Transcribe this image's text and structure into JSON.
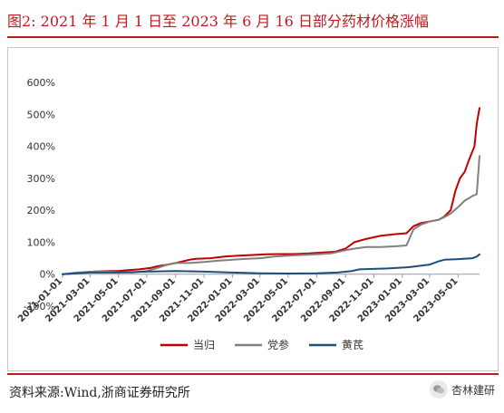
{
  "header": {
    "title": "图2:   2021 年 1 月 1 日至 2023 年 6 月 16 日部分药材价格涨幅"
  },
  "footer": {
    "source": "资料来源:Wind,浙商证券研究所",
    "watermark": "杏林建研"
  },
  "colors": {
    "accent": "#c0191f",
    "danggui": "#c00000",
    "dangshen": "#808080",
    "huangqi": "#1f4e79"
  },
  "chart_data": {
    "type": "line",
    "title": "图2:   2021 年 1 月 1 日至 2023 年 6 月 16 日部分药材价格涨幅",
    "xlabel": "",
    "ylabel": "",
    "ylim": [
      -100,
      600
    ],
    "y_ticks": [
      "-100%",
      "0%",
      "100%",
      "200%",
      "300%",
      "400%",
      "500%",
      "600%"
    ],
    "y_tick_values": [
      -100,
      0,
      100,
      200,
      300,
      400,
      500,
      600
    ],
    "x_range": [
      "2021-01-01",
      "2023-06-16"
    ],
    "x_ticks": [
      "2021-01-01",
      "2021-03-01",
      "2021-05-01",
      "2021-07-01",
      "2021-09-01",
      "2021-11-01",
      "2022-01-01",
      "2022-03-01",
      "2022-05-01",
      "2022-07-01",
      "2022-09-01",
      "2022-11-01",
      "2023-01-01",
      "2023-03-01",
      "2023-05-01"
    ],
    "grid": false,
    "legend_position": "bottom",
    "series": [
      {
        "name": "当归",
        "color": "#c00000",
        "points": [
          [
            "2021-01-01",
            0
          ],
          [
            "2021-01-20",
            2
          ],
          [
            "2021-02-15",
            5
          ],
          [
            "2021-03-10",
            8
          ],
          [
            "2021-04-10",
            10
          ],
          [
            "2021-05-01",
            10
          ],
          [
            "2021-05-15",
            12
          ],
          [
            "2021-06-15",
            15
          ],
          [
            "2021-07-10",
            20
          ],
          [
            "2021-07-25",
            25
          ],
          [
            "2021-08-15",
            30
          ],
          [
            "2021-09-01",
            35
          ],
          [
            "2021-10-01",
            45
          ],
          [
            "2021-10-15",
            48
          ],
          [
            "2021-11-15",
            50
          ],
          [
            "2021-12-15",
            55
          ],
          [
            "2022-01-15",
            58
          ],
          [
            "2022-02-15",
            60
          ],
          [
            "2022-03-15",
            62
          ],
          [
            "2022-04-15",
            63
          ],
          [
            "2022-05-15",
            63
          ],
          [
            "2022-06-15",
            65
          ],
          [
            "2022-07-15",
            68
          ],
          [
            "2022-08-10",
            70
          ],
          [
            "2022-09-01",
            80
          ],
          [
            "2022-09-20",
            100
          ],
          [
            "2022-10-15",
            110
          ],
          [
            "2022-11-15",
            120
          ],
          [
            "2022-12-15",
            125
          ],
          [
            "2023-01-10",
            128
          ],
          [
            "2023-01-25",
            150
          ],
          [
            "2023-02-10",
            160
          ],
          [
            "2023-03-01",
            165
          ],
          [
            "2023-03-20",
            170
          ],
          [
            "2023-04-01",
            180
          ],
          [
            "2023-04-15",
            200
          ],
          [
            "2023-04-25",
            260
          ],
          [
            "2023-05-05",
            300
          ],
          [
            "2023-05-15",
            320
          ],
          [
            "2023-05-25",
            360
          ],
          [
            "2023-06-05",
            400
          ],
          [
            "2023-06-10",
            470
          ],
          [
            "2023-06-16",
            520
          ]
        ]
      },
      {
        "name": "党参",
        "color": "#808080",
        "points": [
          [
            "2021-01-01",
            0
          ],
          [
            "2021-02-01",
            5
          ],
          [
            "2021-03-10",
            8
          ],
          [
            "2021-04-10",
            8
          ],
          [
            "2021-05-01",
            6
          ],
          [
            "2021-06-01",
            5
          ],
          [
            "2021-07-01",
            10
          ],
          [
            "2021-07-25",
            20
          ],
          [
            "2021-08-15",
            30
          ],
          [
            "2021-09-01",
            35
          ],
          [
            "2021-10-01",
            35
          ],
          [
            "2021-11-01",
            38
          ],
          [
            "2021-12-01",
            42
          ],
          [
            "2022-01-01",
            45
          ],
          [
            "2022-02-01",
            48
          ],
          [
            "2022-03-01",
            50
          ],
          [
            "2022-04-01",
            55
          ],
          [
            "2022-05-01",
            58
          ],
          [
            "2022-06-01",
            60
          ],
          [
            "2022-07-01",
            62
          ],
          [
            "2022-08-01",
            65
          ],
          [
            "2022-09-01",
            75
          ],
          [
            "2022-09-20",
            80
          ],
          [
            "2022-10-15",
            85
          ],
          [
            "2022-11-15",
            85
          ],
          [
            "2022-12-15",
            87
          ],
          [
            "2023-01-10",
            90
          ],
          [
            "2023-01-25",
            140
          ],
          [
            "2023-02-10",
            155
          ],
          [
            "2023-03-01",
            165
          ],
          [
            "2023-03-20",
            170
          ],
          [
            "2023-04-01",
            178
          ],
          [
            "2023-04-15",
            190
          ],
          [
            "2023-05-01",
            210
          ],
          [
            "2023-05-15",
            230
          ],
          [
            "2023-06-01",
            245
          ],
          [
            "2023-06-10",
            250
          ],
          [
            "2023-06-14",
            330
          ],
          [
            "2023-06-16",
            370
          ]
        ]
      },
      {
        "name": "黄芪",
        "color": "#1f4e79",
        "points": [
          [
            "2021-01-01",
            0
          ],
          [
            "2021-02-01",
            3
          ],
          [
            "2021-03-01",
            5
          ],
          [
            "2021-05-01",
            5
          ],
          [
            "2021-07-01",
            8
          ],
          [
            "2021-09-01",
            10
          ],
          [
            "2021-11-01",
            8
          ],
          [
            "2022-01-01",
            5
          ],
          [
            "2022-03-01",
            3
          ],
          [
            "2022-05-01",
            2
          ],
          [
            "2022-07-01",
            3
          ],
          [
            "2022-08-15",
            5
          ],
          [
            "2022-09-15",
            10
          ],
          [
            "2022-10-01",
            15
          ],
          [
            "2022-12-01",
            18
          ],
          [
            "2023-01-15",
            22
          ],
          [
            "2023-03-01",
            30
          ],
          [
            "2023-03-20",
            40
          ],
          [
            "2023-04-01",
            45
          ],
          [
            "2023-05-01",
            47
          ],
          [
            "2023-06-01",
            50
          ],
          [
            "2023-06-10",
            55
          ],
          [
            "2023-06-16",
            62
          ]
        ]
      }
    ]
  }
}
